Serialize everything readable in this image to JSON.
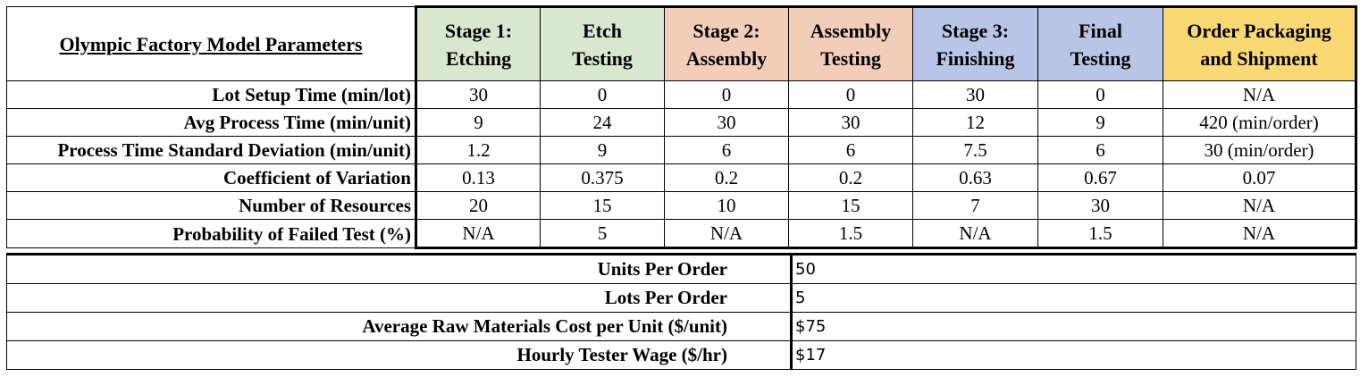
{
  "title": "Olympic Factory Model Parameters",
  "colors": {
    "green": "#d8e7cd",
    "orange": "#f2cdb9",
    "blue": "#b7c6e6",
    "yellow": "#fad874"
  },
  "stages": [
    {
      "line1": "Stage 1:",
      "line2": "Etching",
      "color": "#d8e7cd"
    },
    {
      "line1": "Etch",
      "line2": "Testing",
      "color": "#d8e7cd"
    },
    {
      "line1": "Stage 2:",
      "line2": "Assembly",
      "color": "#f2cdb9"
    },
    {
      "line1": "Assembly",
      "line2": "Testing",
      "color": "#f2cdb9"
    },
    {
      "line1": "Stage 3:",
      "line2": "Finishing",
      "color": "#b7c6e6"
    },
    {
      "line1": "Final",
      "line2": "Testing",
      "color": "#b7c6e6"
    },
    {
      "line1": "Order Packaging",
      "line2": "and Shipment",
      "color": "#fad874"
    }
  ],
  "rows": [
    {
      "label": "Lot Setup Time (min/lot)",
      "values": [
        "30",
        "0",
        "0",
        "0",
        "30",
        "0",
        "N/A"
      ]
    },
    {
      "label": "Avg Process Time (min/unit)",
      "values": [
        "9",
        "24",
        "30",
        "30",
        "12",
        "9",
        "420 (min/order)"
      ]
    },
    {
      "label": "Process Time Standard Deviation (min/unit)",
      "values": [
        "1.2",
        "9",
        "6",
        "6",
        "7.5",
        "6",
        "30 (min/order)"
      ]
    },
    {
      "label": "Coefficient of Variation",
      "values": [
        "0.13",
        "0.375",
        "0.2",
        "0.2",
        "0.63",
        "0.67",
        "0.07"
      ]
    },
    {
      "label": "Number of Resources",
      "values": [
        "20",
        "15",
        "10",
        "15",
        "7",
        "30",
        "N/A"
      ]
    },
    {
      "label": "Probability of Failed Test (%)",
      "values": [
        "N/A",
        "5",
        "N/A",
        "1.5",
        "N/A",
        "1.5",
        "N/A"
      ]
    }
  ],
  "summary": [
    {
      "label": "Units Per Order",
      "value": "50"
    },
    {
      "label": "Lots Per Order",
      "value": "5"
    },
    {
      "label": "Average Raw Materials Cost per Unit ($/unit)",
      "value": "$75"
    },
    {
      "label": "Hourly Tester Wage ($/hr)",
      "value": "$17"
    }
  ]
}
